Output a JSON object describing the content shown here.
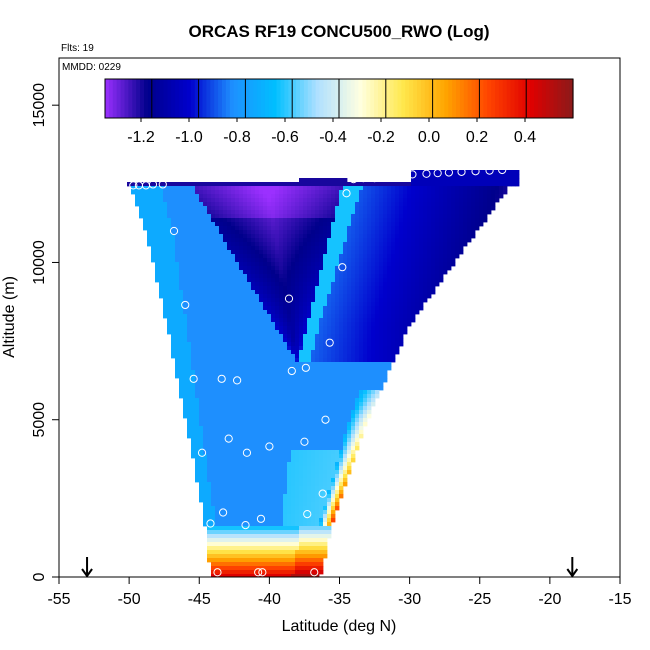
{
  "chart_data": {
    "type": "heatmap",
    "title": "ORCAS RF19 CONCU500_RWO (Log)",
    "flights_note": "Flts: 19",
    "date_note": "MMDD: 0229",
    "xlabel": "Latitude (deg N)",
    "ylabel": "Altitude (m)",
    "xlim": [
      -55,
      -15
    ],
    "ylim": [
      0,
      16500
    ],
    "x_ticks": [
      -55,
      -50,
      -45,
      -40,
      -35,
      -30,
      -25,
      -20,
      -15
    ],
    "y_ticks": [
      0,
      5000,
      10000,
      15000
    ],
    "colorbar": {
      "range": [
        -1.35,
        0.6
      ],
      "ticks": [
        -1.2,
        -1.0,
        -0.8,
        -0.6,
        -0.4,
        -0.2,
        0.0,
        0.2,
        0.4
      ],
      "tick_labels": [
        "-1.2",
        "-1.0",
        "-0.8",
        "-0.6",
        "-0.4",
        "-0.2",
        "0.0",
        "0.2",
        "0.4"
      ],
      "colors": [
        "#9b30ff",
        "#00008b",
        "#0000cd",
        "#1e90ff",
        "#00bfff",
        "#b0e0ff",
        "#ffffe0",
        "#ffe84d",
        "#ffa500",
        "#ff4500",
        "#e00000",
        "#8b1a1a"
      ],
      "segments": 10
    },
    "field": {
      "left_edge": [
        [
          0,
          -44.2
        ],
        [
          2000,
          -44.7
        ],
        [
          5000,
          -46.0
        ],
        [
          8000,
          -47.3
        ],
        [
          11000,
          -48.8
        ],
        [
          12400,
          -49.9
        ]
      ],
      "right_edge": [
        [
          0,
          -36.4
        ],
        [
          2000,
          -35.3
        ],
        [
          5000,
          -33.0
        ],
        [
          8000,
          -30.0
        ],
        [
          11000,
          -25.2
        ],
        [
          12400,
          -22.9
        ]
      ],
      "v_tip": [
        -38.0,
        6800
      ],
      "upper_left_top": [
        -50.2,
        -34.5,
        12500
      ],
      "upper_right_top": [
        -30.0,
        -22.2,
        13000
      ],
      "notch_top": [
        -37.8,
        -34.5,
        12700
      ]
    },
    "points": [
      {
        "x": -49.7,
        "y": 12450
      },
      {
        "x": -49.3,
        "y": 12450
      },
      {
        "x": -48.8,
        "y": 12450
      },
      {
        "x": -48.3,
        "y": 12480
      },
      {
        "x": -47.6,
        "y": 12480
      },
      {
        "x": -46.8,
        "y": 11000
      },
      {
        "x": -46.0,
        "y": 8650
      },
      {
        "x": -45.4,
        "y": 6300
      },
      {
        "x": -43.4,
        "y": 6300
      },
      {
        "x": -42.3,
        "y": 6250
      },
      {
        "x": -44.8,
        "y": 3950
      },
      {
        "x": -42.9,
        "y": 4400
      },
      {
        "x": -41.6,
        "y": 3950
      },
      {
        "x": -40.0,
        "y": 4150
      },
      {
        "x": -38.4,
        "y": 6550
      },
      {
        "x": -37.4,
        "y": 6650
      },
      {
        "x": -38.6,
        "y": 8850
      },
      {
        "x": -35.7,
        "y": 7450
      },
      {
        "x": -34.8,
        "y": 9850
      },
      {
        "x": -34.5,
        "y": 12200
      },
      {
        "x": -34.0,
        "y": 12650
      },
      {
        "x": -33.3,
        "y": 12680
      },
      {
        "x": -32.5,
        "y": 12680
      },
      {
        "x": -31.6,
        "y": 12700
      },
      {
        "x": -30.7,
        "y": 12700
      },
      {
        "x": -29.8,
        "y": 12800
      },
      {
        "x": -28.8,
        "y": 12820
      },
      {
        "x": -28.0,
        "y": 12840
      },
      {
        "x": -27.2,
        "y": 12860
      },
      {
        "x": -26.3,
        "y": 12880
      },
      {
        "x": -25.3,
        "y": 12900
      },
      {
        "x": -24.3,
        "y": 12920
      },
      {
        "x": -23.4,
        "y": 12940
      },
      {
        "x": -37.5,
        "y": 4300
      },
      {
        "x": -36.0,
        "y": 5000
      },
      {
        "x": -36.2,
        "y": 2650
      },
      {
        "x": -37.3,
        "y": 2000
      },
      {
        "x": -40.6,
        "y": 1850
      },
      {
        "x": -41.7,
        "y": 1650
      },
      {
        "x": -44.2,
        "y": 1700
      },
      {
        "x": -43.3,
        "y": 2050
      },
      {
        "x": -43.7,
        "y": 150
      },
      {
        "x": -40.8,
        "y": 150
      },
      {
        "x": -40.5,
        "y": 150
      },
      {
        "x": -36.8,
        "y": 150
      }
    ],
    "arrows": [
      -53.0,
      -18.4
    ]
  }
}
